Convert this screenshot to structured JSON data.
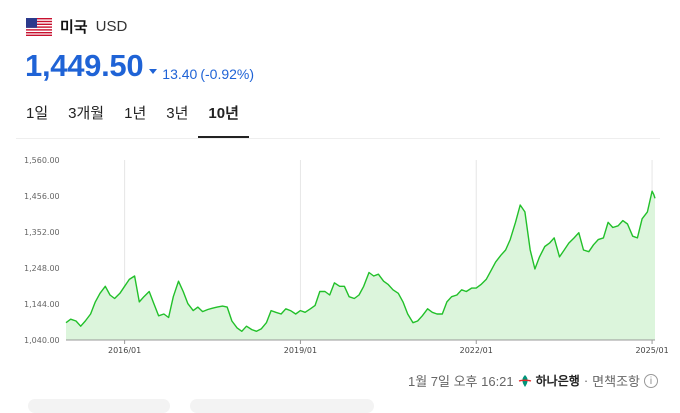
{
  "header": {
    "flag_icon": "us-flag-icon",
    "country": "미국",
    "currency": "USD"
  },
  "price": {
    "value": "1,449.50",
    "change": "13.40",
    "change_percent": "(-0.92%)",
    "direction": "down",
    "color": "#1f63d6"
  },
  "tabs": [
    {
      "label": "1일",
      "active": false
    },
    {
      "label": "3개월",
      "active": false
    },
    {
      "label": "1년",
      "active": false
    },
    {
      "label": "3년",
      "active": false
    },
    {
      "label": "10년",
      "active": true
    }
  ],
  "chart_data": {
    "type": "area",
    "color": "#22c02a",
    "fill": "#dcf5dc",
    "y_ticks": [
      "1,560.00",
      "1,456.00",
      "1,352.00",
      "1,248.00",
      "1,144.00",
      "1,040.00"
    ],
    "ylim": [
      1040,
      1560
    ],
    "x_ticks": [
      "2016/01",
      "2019/01",
      "2022/01",
      "2025/01"
    ],
    "x_tick_years": [
      2016.0,
      2019.0,
      2022.0,
      2025.0
    ],
    "xlim": [
      2015.0,
      2025.05
    ],
    "grid": "vertical",
    "series": [
      {
        "values": [
          [
            2015.0,
            1090
          ],
          [
            2015.08,
            1100
          ],
          [
            2015.17,
            1095
          ],
          [
            2015.25,
            1080
          ],
          [
            2015.33,
            1095
          ],
          [
            2015.42,
            1115
          ],
          [
            2015.5,
            1150
          ],
          [
            2015.58,
            1175
          ],
          [
            2015.67,
            1195
          ],
          [
            2015.75,
            1170
          ],
          [
            2015.83,
            1160
          ],
          [
            2015.92,
            1175
          ],
          [
            2016.0,
            1195
          ],
          [
            2016.08,
            1215
          ],
          [
            2016.17,
            1225
          ],
          [
            2016.25,
            1150
          ],
          [
            2016.33,
            1165
          ],
          [
            2016.42,
            1180
          ],
          [
            2016.5,
            1145
          ],
          [
            2016.58,
            1110
          ],
          [
            2016.67,
            1115
          ],
          [
            2016.75,
            1105
          ],
          [
            2016.83,
            1165
          ],
          [
            2016.92,
            1210
          ],
          [
            2017.0,
            1180
          ],
          [
            2017.08,
            1145
          ],
          [
            2017.17,
            1125
          ],
          [
            2017.25,
            1135
          ],
          [
            2017.33,
            1122
          ],
          [
            2017.42,
            1128
          ],
          [
            2017.5,
            1132
          ],
          [
            2017.58,
            1135
          ],
          [
            2017.67,
            1138
          ],
          [
            2017.75,
            1135
          ],
          [
            2017.83,
            1095
          ],
          [
            2017.92,
            1075
          ],
          [
            2018.0,
            1065
          ],
          [
            2018.08,
            1080
          ],
          [
            2018.17,
            1070
          ],
          [
            2018.25,
            1065
          ],
          [
            2018.33,
            1072
          ],
          [
            2018.42,
            1090
          ],
          [
            2018.5,
            1125
          ],
          [
            2018.58,
            1120
          ],
          [
            2018.67,
            1115
          ],
          [
            2018.75,
            1130
          ],
          [
            2018.83,
            1125
          ],
          [
            2018.92,
            1115
          ],
          [
            2019.0,
            1125
          ],
          [
            2019.08,
            1120
          ],
          [
            2019.17,
            1130
          ],
          [
            2019.25,
            1140
          ],
          [
            2019.33,
            1180
          ],
          [
            2019.42,
            1180
          ],
          [
            2019.5,
            1170
          ],
          [
            2019.58,
            1205
          ],
          [
            2019.67,
            1195
          ],
          [
            2019.75,
            1195
          ],
          [
            2019.83,
            1165
          ],
          [
            2019.92,
            1160
          ],
          [
            2020.0,
            1170
          ],
          [
            2020.08,
            1195
          ],
          [
            2020.17,
            1235
          ],
          [
            2020.25,
            1225
          ],
          [
            2020.33,
            1230
          ],
          [
            2020.42,
            1210
          ],
          [
            2020.5,
            1200
          ],
          [
            2020.58,
            1185
          ],
          [
            2020.67,
            1175
          ],
          [
            2020.75,
            1150
          ],
          [
            2020.83,
            1115
          ],
          [
            2020.92,
            1090
          ],
          [
            2021.0,
            1095
          ],
          [
            2021.08,
            1110
          ],
          [
            2021.17,
            1130
          ],
          [
            2021.25,
            1120
          ],
          [
            2021.33,
            1115
          ],
          [
            2021.42,
            1115
          ],
          [
            2021.5,
            1150
          ],
          [
            2021.58,
            1165
          ],
          [
            2021.67,
            1170
          ],
          [
            2021.75,
            1185
          ],
          [
            2021.83,
            1180
          ],
          [
            2021.92,
            1190
          ],
          [
            2022.0,
            1190
          ],
          [
            2022.08,
            1200
          ],
          [
            2022.17,
            1215
          ],
          [
            2022.25,
            1240
          ],
          [
            2022.33,
            1265
          ],
          [
            2022.42,
            1285
          ],
          [
            2022.5,
            1300
          ],
          [
            2022.58,
            1330
          ],
          [
            2022.67,
            1380
          ],
          [
            2022.75,
            1430
          ],
          [
            2022.83,
            1410
          ],
          [
            2022.92,
            1300
          ],
          [
            2023.0,
            1245
          ],
          [
            2023.08,
            1280
          ],
          [
            2023.17,
            1310
          ],
          [
            2023.25,
            1320
          ],
          [
            2023.33,
            1335
          ],
          [
            2023.42,
            1280
          ],
          [
            2023.5,
            1300
          ],
          [
            2023.58,
            1320
          ],
          [
            2023.67,
            1335
          ],
          [
            2023.75,
            1350
          ],
          [
            2023.83,
            1300
          ],
          [
            2023.92,
            1295
          ],
          [
            2024.0,
            1315
          ],
          [
            2024.08,
            1330
          ],
          [
            2024.17,
            1335
          ],
          [
            2024.25,
            1380
          ],
          [
            2024.33,
            1365
          ],
          [
            2024.42,
            1370
          ],
          [
            2024.5,
            1385
          ],
          [
            2024.58,
            1375
          ],
          [
            2024.67,
            1340
          ],
          [
            2024.75,
            1335
          ],
          [
            2024.83,
            1390
          ],
          [
            2024.92,
            1410
          ],
          [
            2025.0,
            1470
          ],
          [
            2025.03,
            1460
          ],
          [
            2025.05,
            1449.5
          ]
        ]
      }
    ]
  },
  "footer": {
    "timestamp": "1월 7일 오후 16:21",
    "bank_icon": "hana-bank-icon",
    "bank": "하나은행",
    "separator": "·",
    "disclaimer": "면책조항",
    "info_icon": "info-icon",
    "info_glyph": "i"
  }
}
